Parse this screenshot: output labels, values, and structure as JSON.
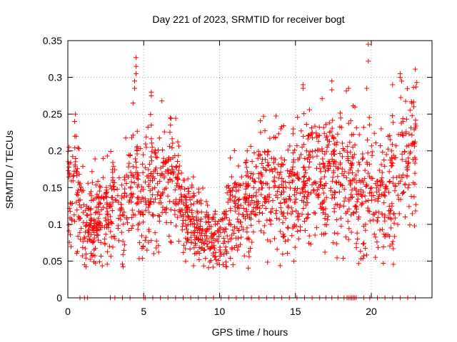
{
  "chart_data": {
    "type": "scatter",
    "title": "Day 221 of 2023, SRMTID for receiver bogt",
    "xlabel": "GPS time / hours",
    "ylabel": "SRMTID / TECUs",
    "xlim": [
      0,
      24
    ],
    "ylim": [
      0,
      0.35
    ],
    "grid": true,
    "marker": "plus",
    "series_color": "#ff0000",
    "x_ticks": [
      {
        "value": 0,
        "label": "0"
      },
      {
        "value": 5,
        "label": "5"
      },
      {
        "value": 10,
        "label": "10"
      },
      {
        "value": 15,
        "label": "15"
      },
      {
        "value": 20,
        "label": "20"
      }
    ],
    "y_ticks": [
      {
        "value": 0,
        "label": "0"
      },
      {
        "value": 0.05,
        "label": "0.05"
      },
      {
        "value": 0.1,
        "label": "0.1"
      },
      {
        "value": 0.15,
        "label": "0.15"
      },
      {
        "value": 0.2,
        "label": "0.2"
      },
      {
        "value": 0.25,
        "label": "0.25"
      },
      {
        "value": 0.3,
        "label": "0.3"
      },
      {
        "value": 0.35,
        "label": "0.35"
      }
    ],
    "trend": {
      "x": [
        0,
        0.5,
        1,
        1.5,
        2,
        2.5,
        3,
        3.5,
        4,
        4.5,
        5,
        5.5,
        6,
        6.5,
        7,
        7.5,
        8,
        8.5,
        9,
        9.5,
        10,
        10.5,
        11,
        11.5,
        12,
        12.5,
        13,
        13.5,
        14,
        14.5,
        15,
        15.5,
        16,
        16.5,
        17,
        17.5,
        18,
        18.5,
        19,
        19.5,
        20,
        20.5,
        21,
        21.5,
        22,
        22.5,
        23
      ],
      "y": [
        0.14,
        0.15,
        0.1,
        0.1,
        0.11,
        0.12,
        0.13,
        0.12,
        0.14,
        0.15,
        0.14,
        0.15,
        0.16,
        0.17,
        0.16,
        0.13,
        0.11,
        0.1,
        0.09,
        0.085,
        0.08,
        0.1,
        0.12,
        0.13,
        0.13,
        0.14,
        0.15,
        0.16,
        0.15,
        0.14,
        0.14,
        0.16,
        0.17,
        0.16,
        0.16,
        0.17,
        0.17,
        0.17,
        0.16,
        0.15,
        0.15,
        0.14,
        0.14,
        0.16,
        0.18,
        0.19,
        0.2
      ],
      "spread": [
        0.035,
        0.04,
        0.03,
        0.03,
        0.03,
        0.03,
        0.035,
        0.03,
        0.035,
        0.04,
        0.04,
        0.04,
        0.04,
        0.035,
        0.035,
        0.03,
        0.025,
        0.025,
        0.025,
        0.02,
        0.02,
        0.03,
        0.035,
        0.035,
        0.035,
        0.035,
        0.04,
        0.04,
        0.04,
        0.04,
        0.04,
        0.045,
        0.045,
        0.04,
        0.04,
        0.04,
        0.045,
        0.045,
        0.045,
        0.045,
        0.045,
        0.045,
        0.045,
        0.045,
        0.045,
        0.045,
        0.045
      ]
    },
    "sample_count": 1800,
    "outliers": [
      {
        "x": 0.5,
        "y": 0.25
      },
      {
        "x": 0.45,
        "y": 0.24
      },
      {
        "x": 4.5,
        "y": 0.327
      },
      {
        "x": 4.5,
        "y": 0.315
      },
      {
        "x": 4.5,
        "y": 0.305
      },
      {
        "x": 4.4,
        "y": 0.295
      },
      {
        "x": 4.4,
        "y": 0.285
      },
      {
        "x": 4.3,
        "y": 0.265
      },
      {
        "x": 5.5,
        "y": 0.28
      },
      {
        "x": 5.5,
        "y": 0.275
      },
      {
        "x": 5.5,
        "y": 0.235
      },
      {
        "x": 6.2,
        "y": 0.268
      },
      {
        "x": 12.9,
        "y": 0.247
      },
      {
        "x": 15.5,
        "y": 0.29
      },
      {
        "x": 15.5,
        "y": 0.285
      },
      {
        "x": 17.4,
        "y": 0.295
      },
      {
        "x": 17.4,
        "y": 0.283
      },
      {
        "x": 18.5,
        "y": 0.285
      },
      {
        "x": 19.8,
        "y": 0.345
      },
      {
        "x": 19.8,
        "y": 0.322
      },
      {
        "x": 19.7,
        "y": 0.285
      },
      {
        "x": 21.4,
        "y": 0.29
      },
      {
        "x": 21.9,
        "y": 0.305
      },
      {
        "x": 21.9,
        "y": 0.3
      },
      {
        "x": 22.0,
        "y": 0.295
      },
      {
        "x": 23.0,
        "y": 0.293
      },
      {
        "x": 22.8,
        "y": 0.26
      },
      {
        "x": 10.0,
        "y": 0.045
      },
      {
        "x": 1.1,
        "y": 0.045
      },
      {
        "x": 20.8,
        "y": 0.047
      }
    ],
    "zero_row_x": [
      0.8,
      1.1,
      1.3,
      2.8,
      3.1,
      3.6,
      4.1,
      5.0,
      5.1,
      5.6,
      6.1,
      6.6,
      7.1,
      7.6,
      8.1,
      8.6,
      9.1,
      9.6,
      10.1,
      10.6,
      11.1,
      11.6,
      12.1,
      12.6,
      13.1,
      13.6,
      14.1,
      14.6,
      15.1,
      15.6,
      16.1,
      16.6,
      17.0,
      17.4,
      17.8,
      18.2,
      18.4,
      18.5,
      18.6,
      18.7,
      18.8,
      18.9,
      19.0,
      19.5,
      19.9,
      20.4,
      20.9,
      21.4,
      21.9,
      22.4,
      22.9
    ]
  }
}
